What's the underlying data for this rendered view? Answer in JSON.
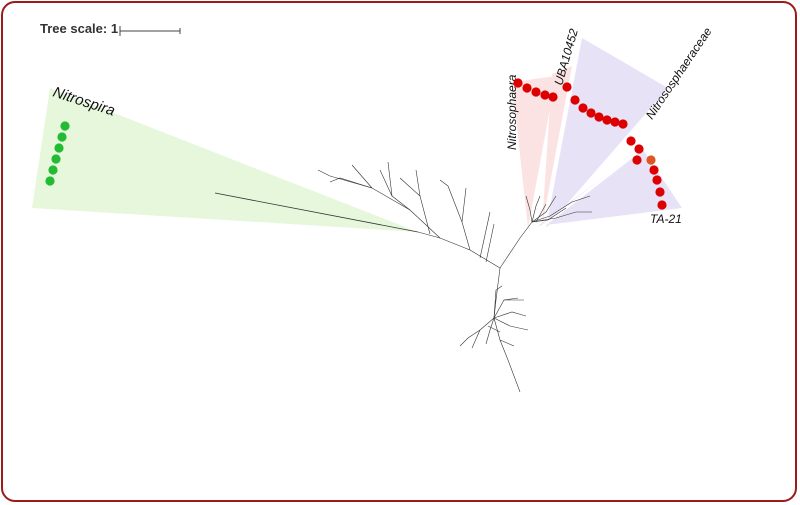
{
  "tree_scale": {
    "label": "Tree scale: 1"
  },
  "clades": [
    {
      "key": "nitrospira",
      "label": "Nitrospira",
      "fill": "#e6f7dc",
      "marker_color": "#22bb33",
      "marker_count": 6
    },
    {
      "key": "nitrosophaera",
      "label": "Nitrosophaera",
      "fill": "#fbe3e3",
      "marker_color": "#dd0000",
      "marker_count": 5
    },
    {
      "key": "uba10452",
      "label": "UBA10452",
      "fill": "#fbe3e3",
      "marker_color": "#dd0000",
      "marker_count": 0
    },
    {
      "key": "nitrososphaeraceae",
      "label": "Nitrososphaeraceae",
      "fill": "#e8e2f7",
      "marker_color": "#dd0000",
      "marker_count": 8
    },
    {
      "key": "ta21",
      "label": "TA-21",
      "fill": "#e8e2f7",
      "marker_color": "#dd0000",
      "marker_count": 8
    }
  ],
  "highlight_marker_color": "#dd5522",
  "colors": {
    "frame": "#9b1b1b",
    "branch": "#333333"
  }
}
